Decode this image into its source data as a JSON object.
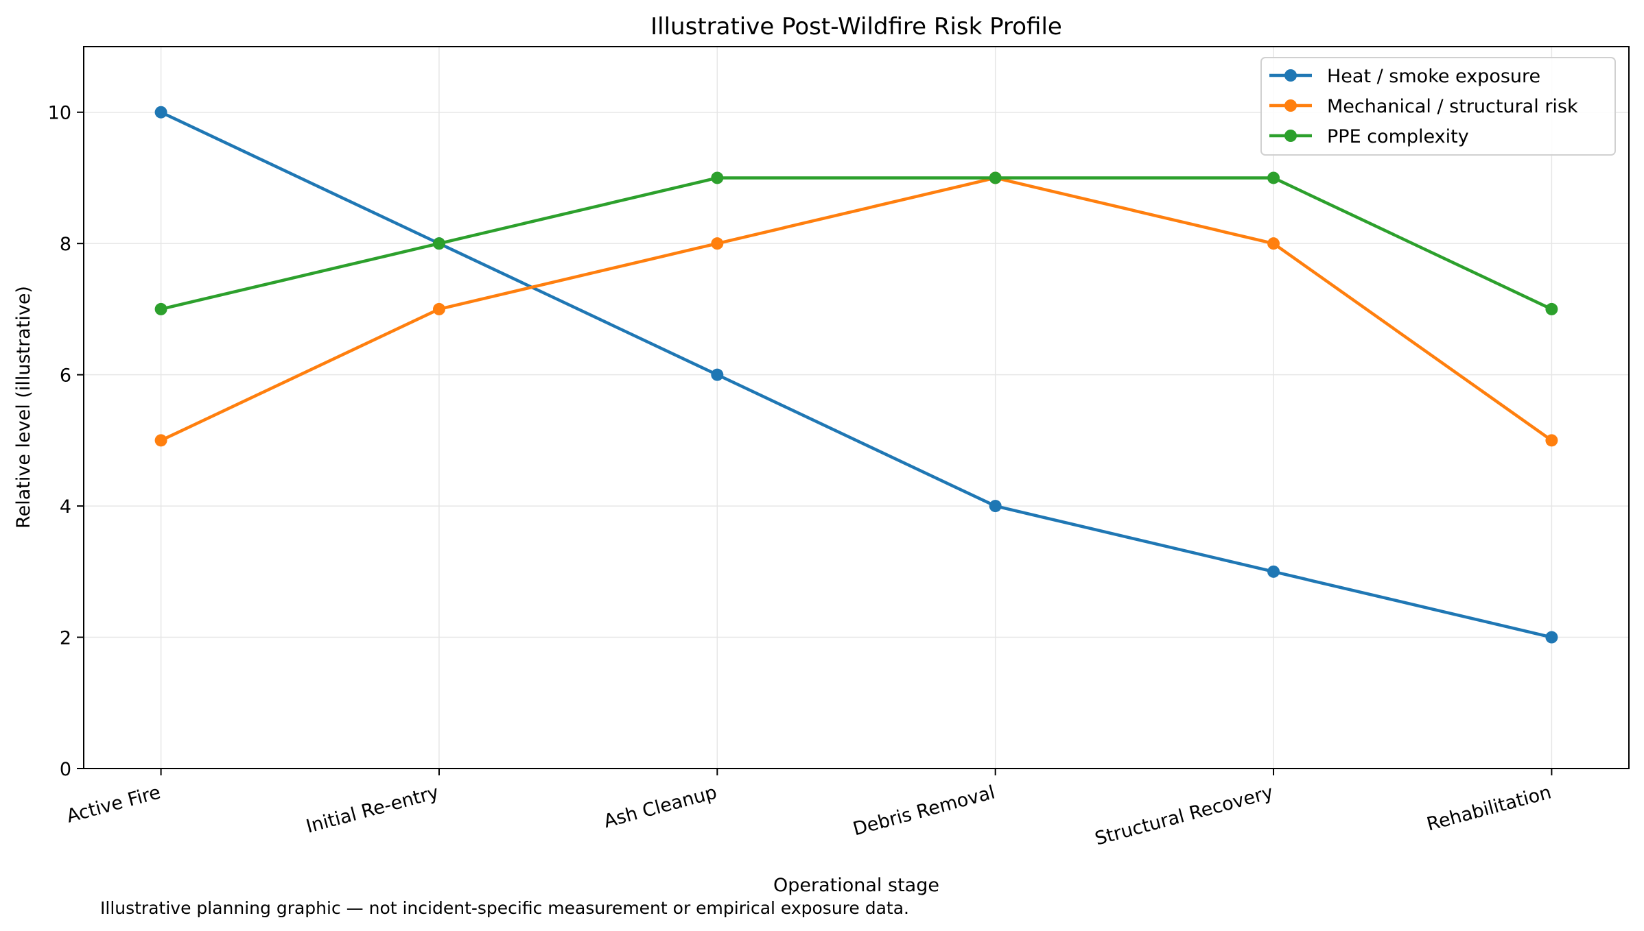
{
  "chart_data": {
    "type": "line",
    "title": "Illustrative Post-Wildfire Risk Profile",
    "xlabel": "Operational stage",
    "ylabel": "Relative level (illustrative)",
    "categories": [
      "Active Fire",
      "Initial Re-entry",
      "Ash Cleanup",
      "Debris Removal",
      "Structural Recovery",
      "Rehabilitation"
    ],
    "ylim": [
      0,
      11
    ],
    "yticks": [
      0,
      2,
      4,
      6,
      8,
      10
    ],
    "grid": true,
    "legend_position": "top-right",
    "series": [
      {
        "name": "Heat / smoke exposure",
        "color": "#1f77b4",
        "values": [
          10,
          8,
          6,
          4,
          3,
          2
        ]
      },
      {
        "name": "Mechanical / structural risk",
        "color": "#ff7f0e",
        "values": [
          5,
          7,
          8,
          9,
          8,
          5
        ]
      },
      {
        "name": "PPE complexity",
        "color": "#2ca02c",
        "values": [
          7,
          8,
          9,
          9,
          9,
          7
        ]
      }
    ],
    "footnote": "Illustrative planning graphic — not incident-specific measurement or empirical exposure data."
  }
}
